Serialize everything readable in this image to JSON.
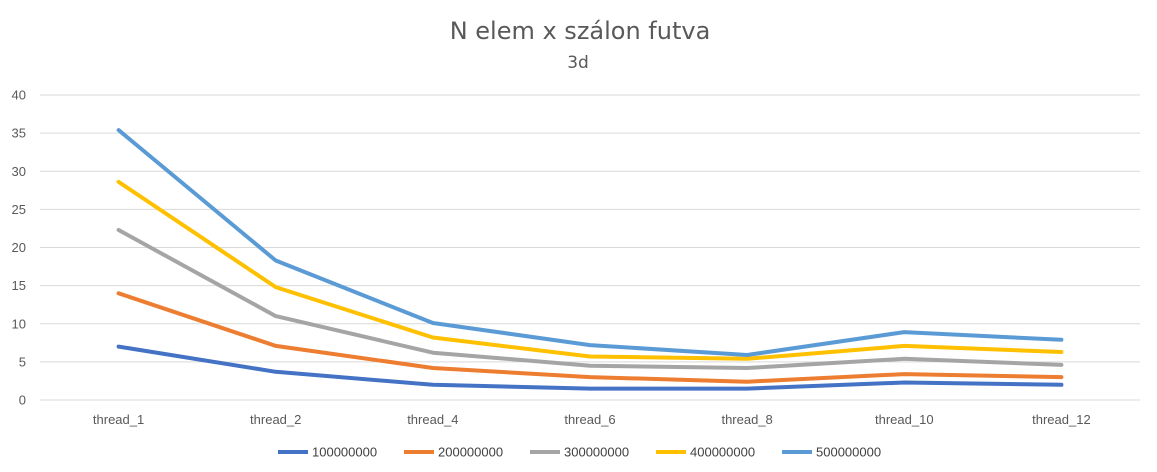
{
  "chart_data": {
    "type": "line",
    "title": "N elem x szálon futva",
    "subtitle": "3d",
    "xlabel": "",
    "ylabel": "",
    "categories": [
      "thread_1",
      "thread_2",
      "thread_4",
      "thread_6",
      "thread_8",
      "thread_10",
      "thread_12"
    ],
    "ylim": [
      0,
      40
    ],
    "yticks": [
      0,
      5,
      10,
      15,
      20,
      25,
      30,
      35,
      40
    ],
    "grid": true,
    "legend_position": "bottom",
    "series": [
      {
        "name": "100000000",
        "color": "#4472c4",
        "values": [
          7.0,
          3.7,
          2.0,
          1.5,
          1.5,
          2.3,
          2.0
        ]
      },
      {
        "name": "200000000",
        "color": "#ed7d31",
        "values": [
          14.0,
          7.1,
          4.2,
          3.0,
          2.4,
          3.4,
          3.0
        ]
      },
      {
        "name": "300000000",
        "color": "#a5a5a5",
        "values": [
          22.3,
          11.0,
          6.2,
          4.5,
          4.2,
          5.4,
          4.6
        ]
      },
      {
        "name": "400000000",
        "color": "#ffc000",
        "values": [
          28.6,
          14.8,
          8.2,
          5.7,
          5.4,
          7.1,
          6.3
        ]
      },
      {
        "name": "500000000",
        "color": "#5b9bd5",
        "values": [
          35.4,
          18.3,
          10.1,
          7.2,
          5.9,
          8.9,
          7.9
        ]
      }
    ]
  }
}
